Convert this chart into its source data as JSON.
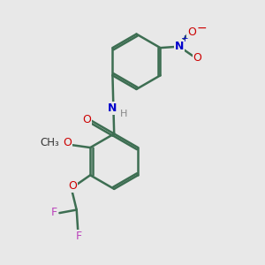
{
  "background_color": "#e8e8e8",
  "bond_color": "#3d6e52",
  "atom_colors": {
    "O": "#cc0000",
    "N": "#0000cc",
    "F": "#bb44bb",
    "H": "#888888"
  },
  "figsize": [
    3.0,
    3.0
  ],
  "dpi": 100
}
